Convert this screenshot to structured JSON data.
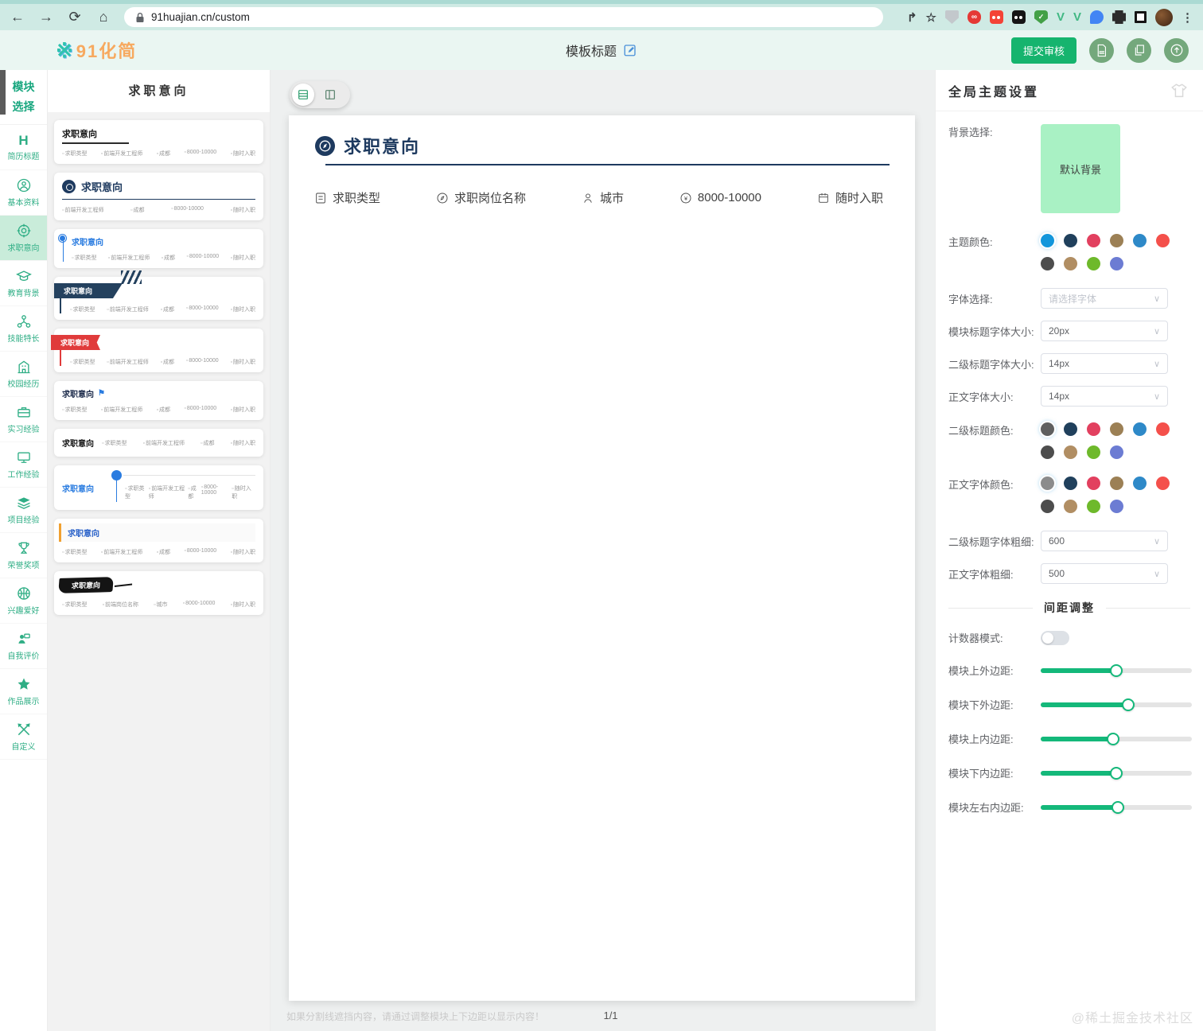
{
  "browser": {
    "url": "91huajian.cn/custom"
  },
  "header": {
    "logo_mark": "※",
    "logo_text": "91化简",
    "doc_title": "模板标题",
    "submit_label": "提交审核"
  },
  "sidebar": {
    "header_line1": "模块",
    "header_line2": "选择",
    "items": [
      {
        "label": "简历标题"
      },
      {
        "label": "基本资料"
      },
      {
        "label": "求职意向",
        "active": true
      },
      {
        "label": "教育背景"
      },
      {
        "label": "技能特长"
      },
      {
        "label": "校园经历"
      },
      {
        "label": "实习经验"
      },
      {
        "label": "工作经验"
      },
      {
        "label": "项目经验"
      },
      {
        "label": "荣誉奖项"
      },
      {
        "label": "兴趣爱好"
      },
      {
        "label": "自我评价"
      },
      {
        "label": "作品展示"
      },
      {
        "label": "自定义"
      }
    ]
  },
  "templates_panel": {
    "title": "求职意向",
    "cards": [
      {
        "title": "求职意向",
        "fields": [
          "求职类型",
          "前端开发工程师",
          "成都",
          "8000-10000",
          "随时入职"
        ]
      },
      {
        "title": "求职意向",
        "fields": [
          "前端开发工程师",
          "成都",
          "8000-10000",
          "随时入职"
        ]
      },
      {
        "title": "求职意向",
        "fields": [
          "求职类型",
          "前端开发工程师",
          "成都",
          "8000-10000",
          "随时入职"
        ]
      },
      {
        "title": "求职意向",
        "fields": [
          "求职类型",
          "前端开发工程师",
          "成都",
          "8000-10000",
          "随时入职"
        ]
      },
      {
        "title": "求职意向",
        "fields": [
          "求职类型",
          "前端开发工程师",
          "成都",
          "8000-10000",
          "随时入职"
        ]
      },
      {
        "title": "求职意向",
        "fields": [
          "求职类型",
          "前端开发工程师",
          "成都",
          "8000-10000",
          "随时入职"
        ]
      },
      {
        "title": "求职意向",
        "fields": [
          "求职类型",
          "前端开发工程师",
          "成都",
          "随时入职"
        ]
      },
      {
        "title": "求职意向",
        "fields": [
          "求职类型",
          "前端开发工程师",
          "成都",
          "8000-10000",
          "随时入职"
        ]
      },
      {
        "title": "求职意向",
        "fields": [
          "求职类型",
          "前端开发工程师",
          "成都",
          "8000-10000",
          "随时入职"
        ]
      },
      {
        "title": "求职意向",
        "fields": [
          "求职类型",
          "前端岗位名称",
          "城市",
          "8000-10000",
          "随时入职"
        ]
      }
    ]
  },
  "canvas": {
    "section_title": "求职意向",
    "fields": [
      "求职类型",
      "求职岗位名称",
      "城市",
      "8000-10000",
      "随时入职"
    ],
    "hint": "如果分割线遮挡内容，请通过调整模块上下边距以显示内容！",
    "page_indicator": "1/1"
  },
  "theme_panel": {
    "title": "全局主题设置",
    "background_label": "背景选择:",
    "background_value": "默认背景",
    "theme_color_label": "主题颜色:",
    "font_label": "字体选择:",
    "font_placeholder": "请选择字体",
    "size1_label": "模块标题字体大小:",
    "size1_value": "20px",
    "size2_label": "二级标题字体大小:",
    "size2_value": "14px",
    "size3_label": "正文字体大小:",
    "size3_value": "14px",
    "subtitle_color_label": "二级标题颜色:",
    "body_color_label": "正文字体颜色:",
    "weight1_label": "二级标题字体粗细:",
    "weight1_value": "600",
    "weight2_label": "正文字体粗细:",
    "weight2_value": "500",
    "spacing_title": "间距调整",
    "counter_label": "计数器模式:",
    "colors": {
      "accent_green": "#16b46e",
      "background_swatch": "#a9f1c4",
      "theme": {
        "selected": 0,
        "colors": [
          "#1296db",
          "#20405c",
          "#e2405f",
          "#9c8055",
          "#2e89c8",
          "#f4504b",
          "#4d4d4d",
          "#b18e63",
          "#6eb92b",
          "#6c7cd3"
        ]
      },
      "subtitle": {
        "selected": 0,
        "colors": [
          "#5f5f5f",
          "#20405c",
          "#e2405f",
          "#9c8055",
          "#2e89c8",
          "#f4504b",
          "#4d4d4d",
          "#b18e63",
          "#6eb92b",
          "#6c7cd3"
        ]
      },
      "body": {
        "selected": 0,
        "colors": [
          "#8c8c8c",
          "#20405c",
          "#e2405f",
          "#9c8055",
          "#2e89c8",
          "#f4504b",
          "#4d4d4d",
          "#b18e63",
          "#6eb92b",
          "#6c7cd3"
        ]
      }
    },
    "sliders": [
      {
        "label": "模块上外边距:",
        "value": 50
      },
      {
        "label": "模块下外边距:",
        "value": 58
      },
      {
        "label": "模块上内边距:",
        "value": 48
      },
      {
        "label": "模块下内边距:",
        "value": 50
      },
      {
        "label": "模块左右内边距:",
        "value": 51
      }
    ]
  },
  "watermark": "@稀土掘金技术社区"
}
